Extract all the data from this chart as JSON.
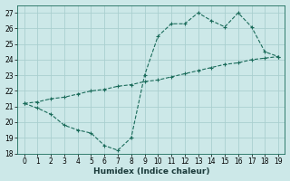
{
  "xlabel": "Humidex (Indice chaleur)",
  "ylabel": "",
  "background_color": "#cce8e8",
  "grid_color": "#aacfcf",
  "line_color": "#1a6b5a",
  "x_upper": [
    0,
    1,
    2,
    3,
    4,
    5,
    6,
    7,
    8,
    9,
    10,
    11,
    12,
    13,
    14,
    15,
    16,
    17,
    18,
    19
  ],
  "y_upper": [
    21.2,
    20.9,
    20.5,
    19.8,
    19.5,
    19.3,
    18.5,
    18.2,
    19.0,
    23.0,
    25.5,
    26.3,
    26.3,
    27.0,
    26.5,
    26.1,
    27.0,
    26.1,
    24.5,
    24.2
  ],
  "x_lower": [
    0,
    1,
    2,
    3,
    4,
    5,
    6,
    7,
    8,
    9,
    10,
    11,
    12,
    13,
    14,
    15,
    16,
    17,
    18,
    19
  ],
  "y_lower": [
    21.2,
    21.3,
    21.5,
    21.6,
    21.8,
    22.0,
    22.1,
    22.3,
    22.4,
    22.6,
    22.7,
    22.9,
    23.1,
    23.3,
    23.5,
    23.7,
    23.8,
    24.0,
    24.1,
    24.2
  ],
  "ylim": [
    18,
    27.5
  ],
  "xlim": [
    -0.5,
    19.5
  ],
  "yticks": [
    18,
    19,
    20,
    21,
    22,
    23,
    24,
    25,
    26,
    27
  ],
  "xticks": [
    0,
    1,
    2,
    3,
    4,
    5,
    6,
    7,
    8,
    9,
    10,
    11,
    12,
    13,
    14,
    15,
    16,
    17,
    18,
    19
  ],
  "tick_labelsize": 5.5,
  "xlabel_fontsize": 6.5,
  "linewidth": 0.8,
  "markersize": 3,
  "figwidth": 3.2,
  "figheight": 2.0,
  "dpi": 100
}
